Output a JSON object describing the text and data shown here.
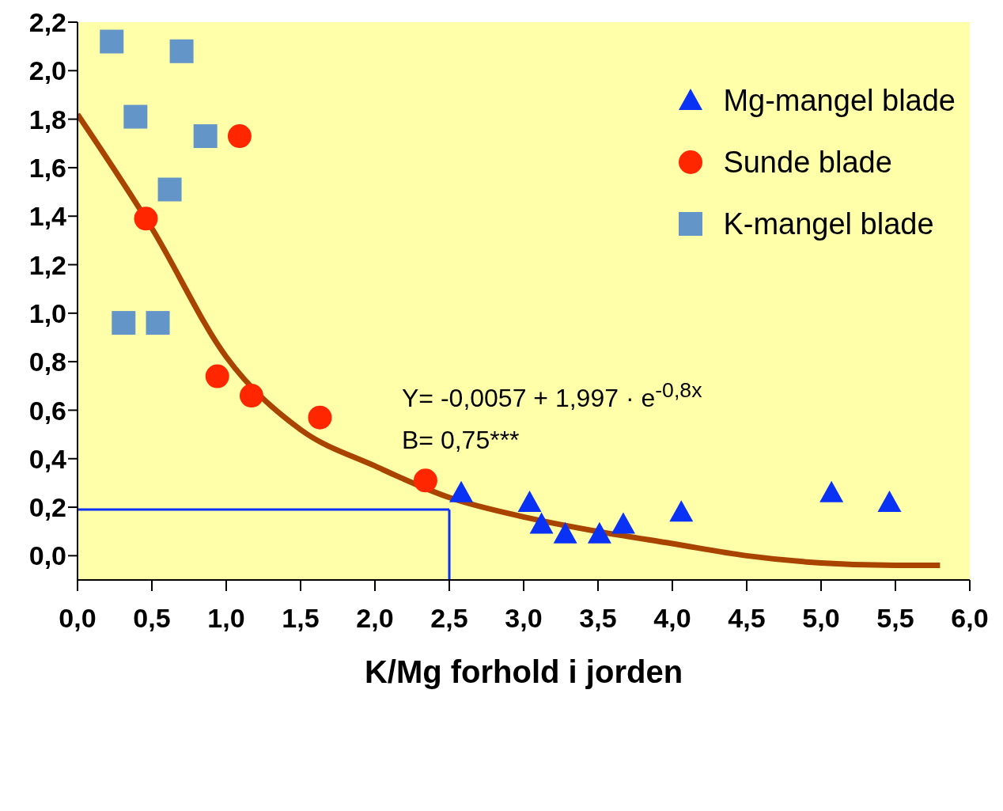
{
  "chart_data": {
    "type": "scatter",
    "xlabel": "K/Mg forhold i jorden",
    "xlim": [
      0,
      6
    ],
    "ylim": [
      -0.1,
      2.2
    ],
    "xticks": [
      {
        "value": 0,
        "label": "0,0"
      },
      {
        "value": 0.5,
        "label": "0,5"
      },
      {
        "value": 1,
        "label": "1,0"
      },
      {
        "value": 1.5,
        "label": "1,5"
      },
      {
        "value": 2,
        "label": "2,0"
      },
      {
        "value": 2.5,
        "label": "2,5"
      },
      {
        "value": 3,
        "label": "3,0"
      },
      {
        "value": 3.5,
        "label": "3,5"
      },
      {
        "value": 4,
        "label": "4,0"
      },
      {
        "value": 4.5,
        "label": "4,5"
      },
      {
        "value": 5,
        "label": "5,0"
      },
      {
        "value": 5.5,
        "label": "5,5"
      },
      {
        "value": 6,
        "label": "6,0"
      }
    ],
    "yticks": [
      {
        "value": 0,
        "label": "0,0"
      },
      {
        "value": 0.2,
        "label": "0,2"
      },
      {
        "value": 0.4,
        "label": "0,4"
      },
      {
        "value": 0.6,
        "label": "0,6"
      },
      {
        "value": 0.8,
        "label": "0,8"
      },
      {
        "value": 1,
        "label": "1,0"
      },
      {
        "value": 1.2,
        "label": "1,2"
      },
      {
        "value": 1.4,
        "label": "1,4"
      },
      {
        "value": 1.6,
        "label": "1,6"
      },
      {
        "value": 1.8,
        "label": "1,8"
      },
      {
        "value": 2,
        "label": "2,0"
      },
      {
        "value": 2.2,
        "label": "2,2"
      }
    ],
    "legend": "top right",
    "series": [
      {
        "name": "Mg-mangel blade",
        "color": "#0a32f5",
        "marker": "triangle",
        "x": [
          2.58,
          3.04,
          3.12,
          3.28,
          3.51,
          3.67,
          4.06,
          5.07,
          5.46
        ],
        "values": [
          0.26,
          0.22,
          0.13,
          0.09,
          0.09,
          0.13,
          0.18,
          0.26,
          0.22
        ]
      },
      {
        "name": "Sunde blade",
        "color": "#ff2600",
        "marker": "circle",
        "x": [
          1.09,
          0.46,
          0.94,
          1.17,
          1.63,
          2.34
        ],
        "values": [
          1.73,
          1.39,
          0.74,
          0.66,
          0.57,
          0.31
        ]
      },
      {
        "name": "K-mangel blade",
        "color": "#6495c8",
        "marker": "square",
        "x": [
          0.23,
          0.7,
          0.39,
          0.86,
          0.62,
          0.31,
          0.54
        ],
        "values": [
          2.12,
          2.08,
          1.81,
          1.73,
          1.51,
          0.96,
          0.96
        ]
      },
      {
        "type": "line",
        "color": "#a94400",
        "marker": "none",
        "line_style": "solid",
        "x": [
          0,
          0.5,
          1,
          1.5,
          2,
          2.5,
          3,
          3.5,
          4,
          4.5,
          5,
          5.5,
          5.8
        ],
        "values": [
          1.82,
          1.35,
          0.82,
          0.52,
          0.37,
          0.24,
          0.16,
          0.1,
          0.05,
          0,
          -0.03,
          -0.04,
          -0.04
        ]
      }
    ],
    "ref_lines": [
      {
        "axis": "y",
        "value": 0.19,
        "color": "#0a32f5"
      },
      {
        "axis": "x",
        "value": 2.5,
        "color": "#0a32f5"
      }
    ],
    "annotations": [
      "Y= -0,0057 + 1,997 · e$^{-0,8x}$",
      "B= 0,75***"
    ]
  }
}
